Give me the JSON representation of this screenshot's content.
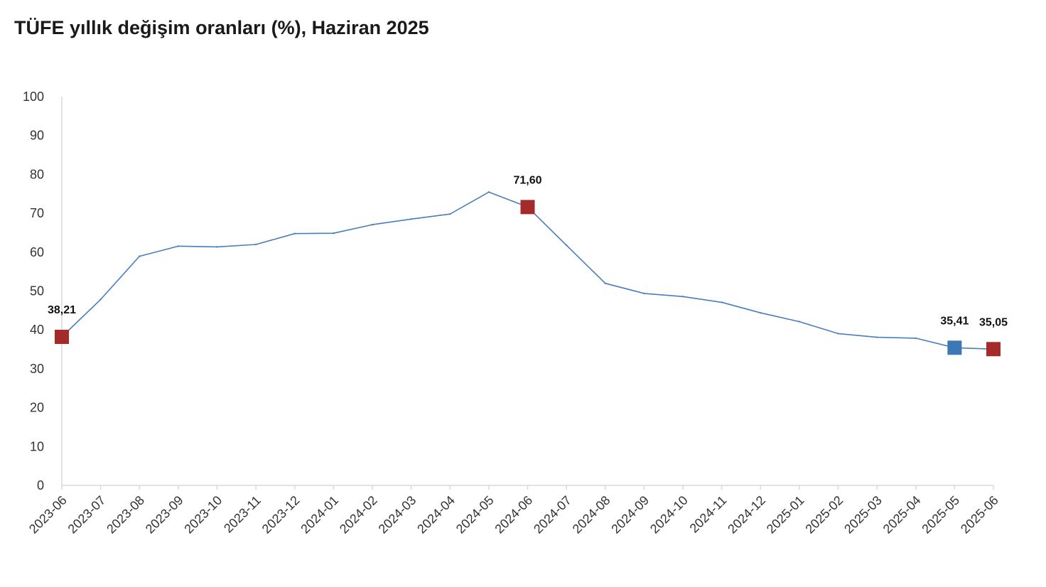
{
  "chart_data": {
    "type": "line",
    "title": "TÜFE yıllık değişim oranları (%), Haziran 2025",
    "xlabel": "",
    "ylabel": "",
    "ylim": [
      0,
      100
    ],
    "yticks": [
      "0",
      "10",
      "20",
      "30",
      "40",
      "50",
      "60",
      "70",
      "80",
      "90",
      "100"
    ],
    "grid": false,
    "legend": "none",
    "categories": [
      "2023-06",
      "2023-07",
      "2023-08",
      "2023-09",
      "2023-10",
      "2023-11",
      "2023-12",
      "2024-01",
      "2024-02",
      "2024-03",
      "2024-04",
      "2024-05",
      "2024-06",
      "2024-07",
      "2024-08",
      "2024-09",
      "2024-10",
      "2024-11",
      "2024-12",
      "2025-01",
      "2025-02",
      "2025-03",
      "2025-04",
      "2025-05",
      "2025-06"
    ],
    "series": [
      {
        "values": [
          38.21,
          47.83,
          58.94,
          61.53,
          61.36,
          61.98,
          64.77,
          64.86,
          67.07,
          68.5,
          69.8,
          75.45,
          71.6,
          61.78,
          51.97,
          49.38,
          48.58,
          47.09,
          44.38,
          42.12,
          39.05,
          38.1,
          37.86,
          35.41,
          35.05
        ],
        "color": "#4a7ebb"
      }
    ],
    "highlighted_points": [
      {
        "category": "2023-06",
        "value": 38.21,
        "label": "38,21",
        "color": "#a52a2a"
      },
      {
        "category": "2024-06",
        "value": 71.6,
        "label": "71,60",
        "color": "#a52a2a"
      },
      {
        "category": "2025-05",
        "value": 35.41,
        "label": "35,41",
        "color": "#3c78b4"
      },
      {
        "category": "2025-06",
        "value": 35.05,
        "label": "35,05",
        "color": "#a52a2a"
      }
    ],
    "axis_color": "#d9d9d9"
  }
}
